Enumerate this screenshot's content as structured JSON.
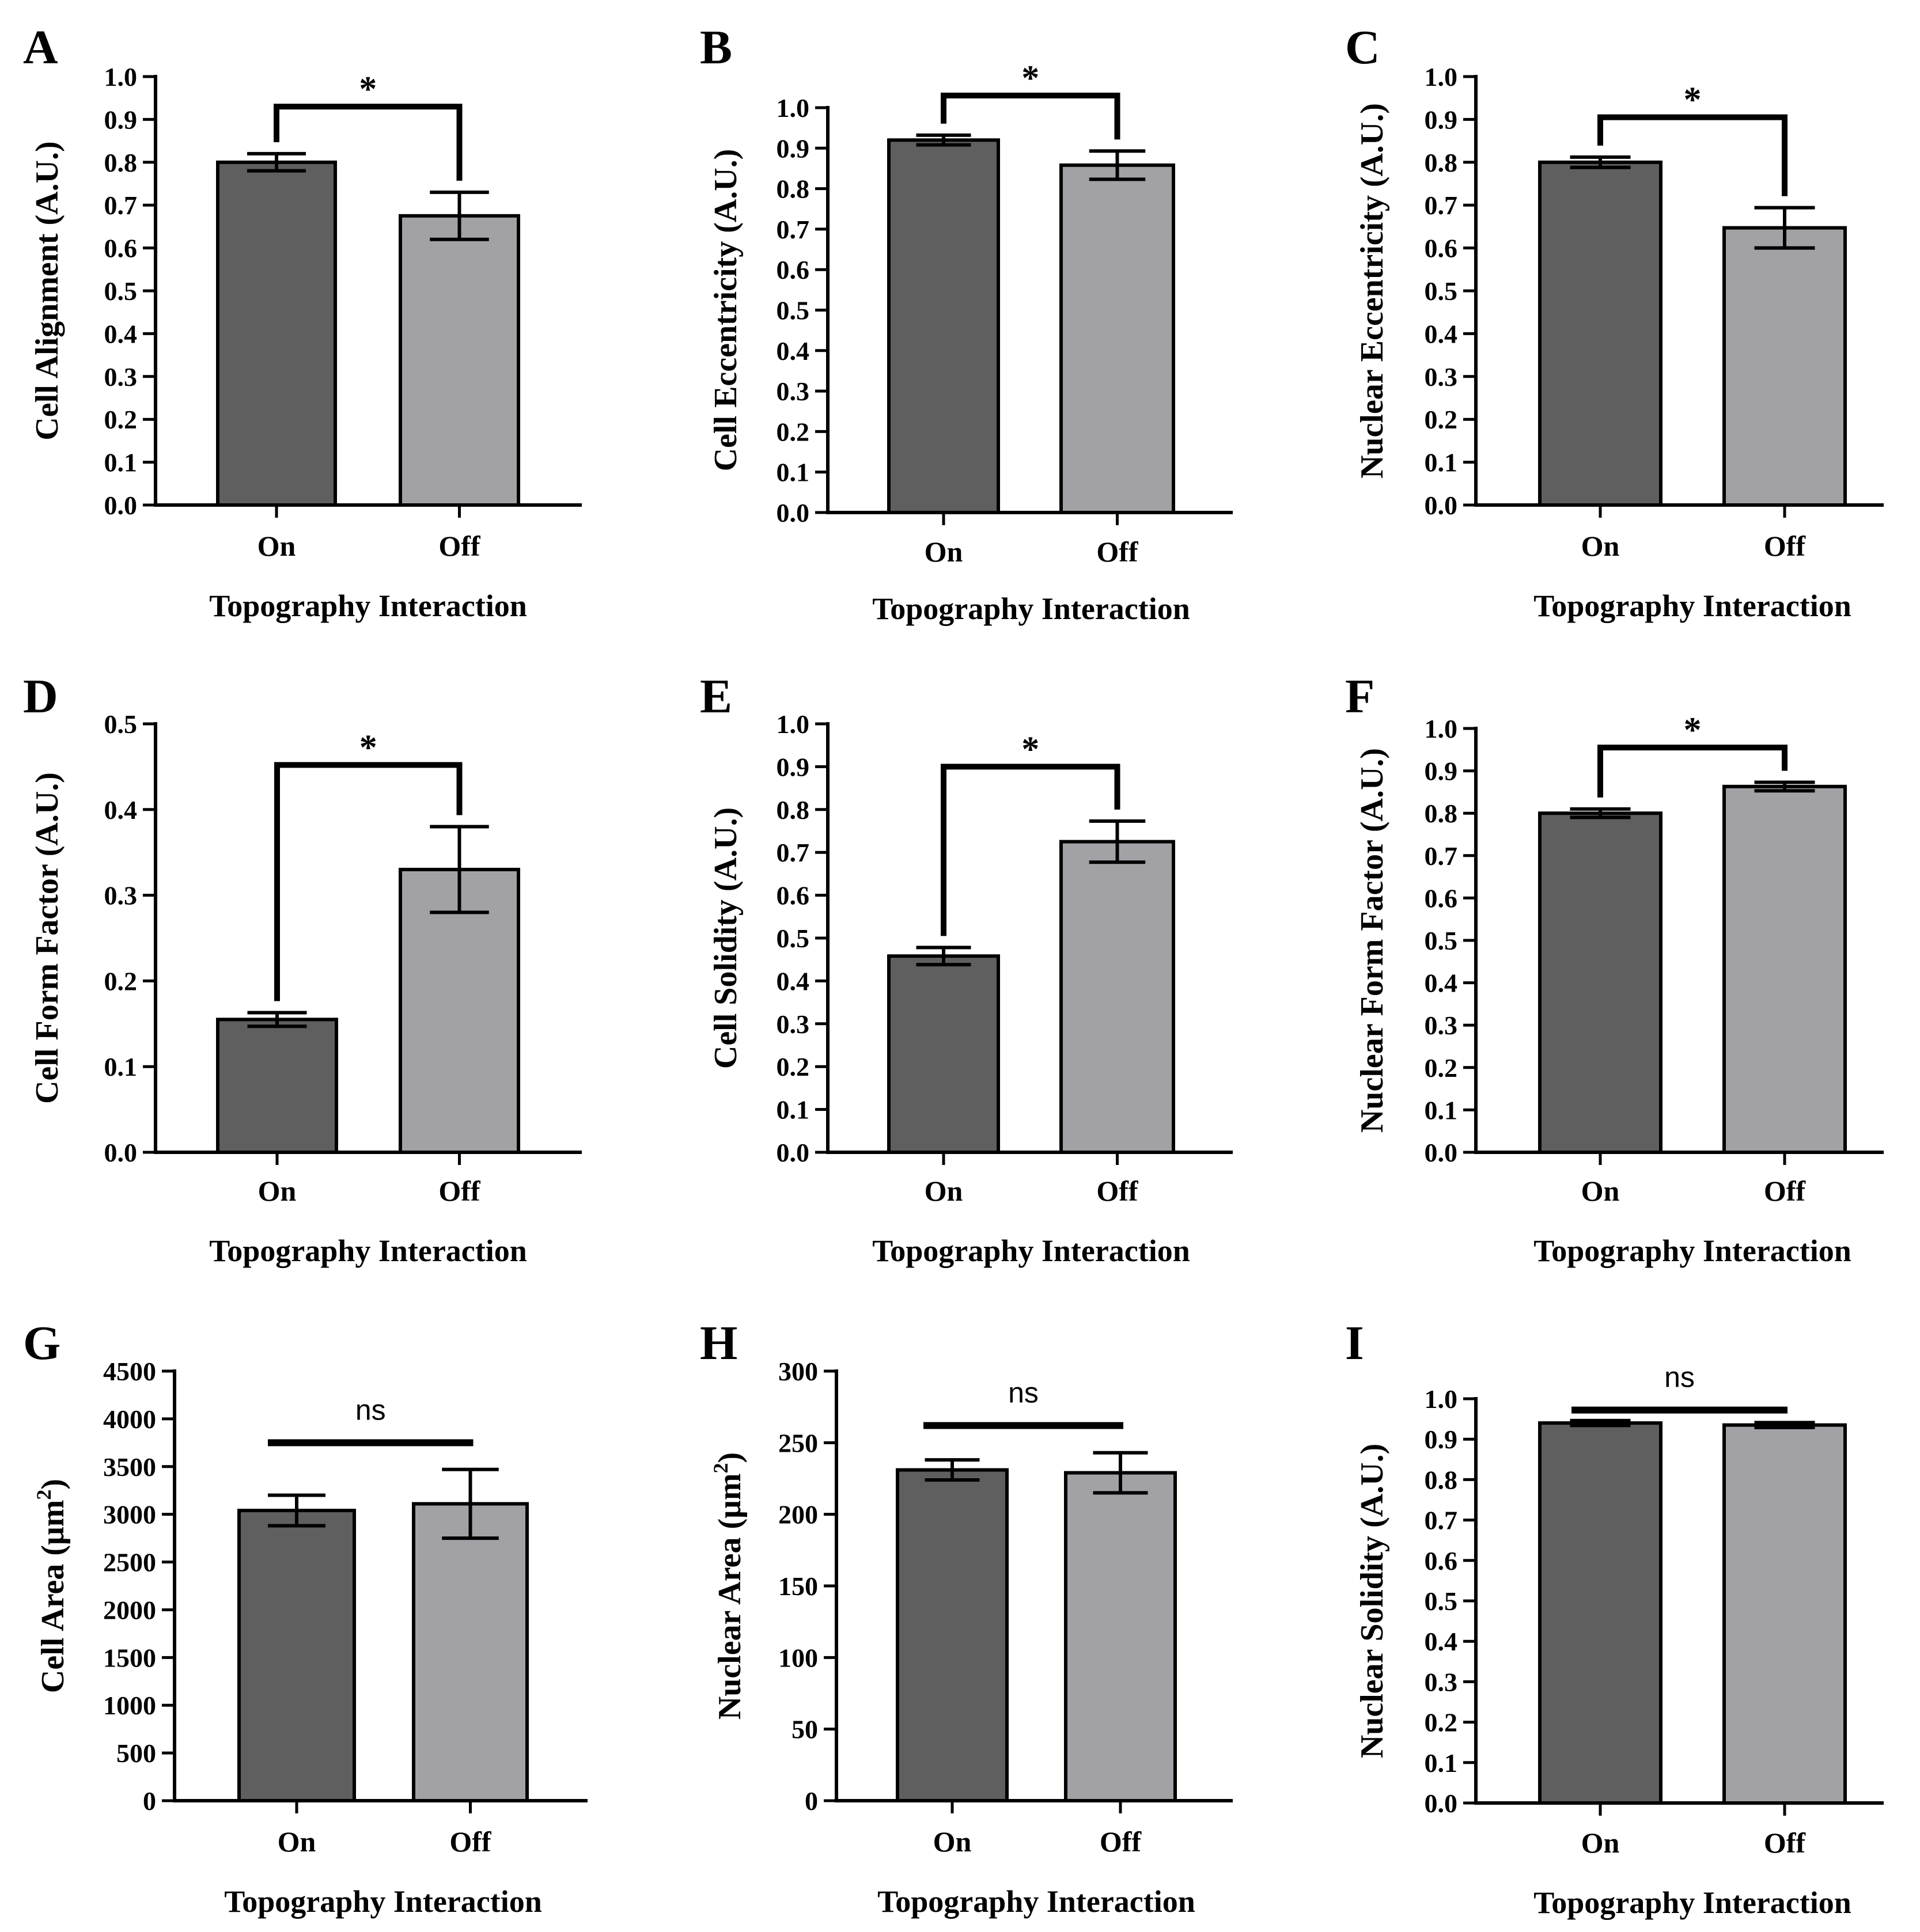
{
  "colors": {
    "on": "#5f5f5f",
    "off": "#a2a2a6",
    "stroke": "#000000"
  },
  "chart_data": [
    {
      "type": "bar",
      "panel": "A",
      "categories": [
        "On",
        "Off"
      ],
      "values": [
        0.8,
        0.675
      ],
      "errors": [
        0.02,
        0.055
      ],
      "ylabel": "Cell Alignment (A.U.)",
      "xlabel": "Topography Interaction",
      "ylim": [
        0,
        1.0
      ],
      "yticks": [
        "0.0",
        "0.1",
        "0.2",
        "0.3",
        "0.4",
        "0.5",
        "0.6",
        "0.7",
        "0.8",
        "0.9",
        "1.0"
      ],
      "significance": "*",
      "bracket_level": 0.93
    },
    {
      "type": "bar",
      "panel": "B",
      "categories": [
        "On",
        "Off"
      ],
      "values": [
        0.92,
        0.858
      ],
      "errors": [
        0.012,
        0.035
      ],
      "ylabel": "Cell Eccentricity (A.U.)",
      "xlabel": "Topography Interaction",
      "ylim": [
        0,
        1.0
      ],
      "yticks": [
        "0.0",
        "0.1",
        "0.2",
        "0.3",
        "0.4",
        "0.5",
        "0.6",
        "0.7",
        "0.8",
        "0.9",
        "1.0"
      ],
      "significance": "*",
      "bracket_level": 1.03
    },
    {
      "type": "bar",
      "panel": "C",
      "categories": [
        "On",
        "Off"
      ],
      "values": [
        0.8,
        0.647
      ],
      "errors": [
        0.012,
        0.047
      ],
      "ylabel": "Nuclear Eccentricity (A.U.)",
      "xlabel": "Topography Interaction",
      "ylim": [
        0,
        1.0
      ],
      "yticks": [
        "0.0",
        "0.1",
        "0.2",
        "0.3",
        "0.4",
        "0.5",
        "0.6",
        "0.7",
        "0.8",
        "0.9",
        "1.0"
      ],
      "significance": "*",
      "bracket_level": 0.905
    },
    {
      "type": "bar",
      "panel": "D",
      "categories": [
        "On",
        "Off"
      ],
      "values": [
        0.155,
        0.33
      ],
      "errors": [
        0.008,
        0.05
      ],
      "ylabel": "Cell Form Factor (A.U.)",
      "xlabel": "Topography Interaction",
      "ylim": [
        0,
        0.5
      ],
      "yticks": [
        "0.0",
        "0.1",
        "0.2",
        "0.3",
        "0.4",
        "0.5"
      ],
      "significance": "*",
      "bracket_level": 0.452
    },
    {
      "type": "bar",
      "panel": "E",
      "categories": [
        "On",
        "Off"
      ],
      "values": [
        0.458,
        0.725
      ],
      "errors": [
        0.02,
        0.048
      ],
      "ylabel": "Cell Solidity (A.U.)",
      "xlabel": "Topography Interaction",
      "ylim": [
        0,
        1.0
      ],
      "yticks": [
        "0.0",
        "0.1",
        "0.2",
        "0.3",
        "0.4",
        "0.5",
        "0.6",
        "0.7",
        "0.8",
        "0.9",
        "1.0"
      ],
      "significance": "*",
      "bracket_level": 0.9
    },
    {
      "type": "bar",
      "panel": "F",
      "categories": [
        "On",
        "Off"
      ],
      "values": [
        0.8,
        0.863
      ],
      "errors": [
        0.01,
        0.01
      ],
      "ylabel": "Nuclear Form Factor (A.U.)",
      "xlabel": "Topography Interaction",
      "ylim": [
        0,
        1.0
      ],
      "yticks": [
        "0.0",
        "0.1",
        "0.2",
        "0.3",
        "0.4",
        "0.5",
        "0.6",
        "0.7",
        "0.8",
        "0.9",
        "1.0"
      ],
      "significance": "*",
      "bracket_level": 0.955
    },
    {
      "type": "bar",
      "panel": "G",
      "categories": [
        "On",
        "Off"
      ],
      "values": [
        3040,
        3110
      ],
      "errors": [
        160,
        360
      ],
      "ylabel_main": "Cell Area (μm",
      "ylabel_sup": "2",
      "ylabel_end": ")",
      "xlabel": "Topography Interaction",
      "ylim": [
        0,
        4500
      ],
      "yticks": [
        "0",
        "500",
        "1000",
        "1500",
        "2000",
        "2500",
        "3000",
        "3500",
        "4000",
        "4500"
      ],
      "significance": "ns",
      "bracket_level": 3750
    },
    {
      "type": "bar",
      "panel": "H",
      "categories": [
        "On",
        "Off"
      ],
      "values": [
        231,
        229
      ],
      "errors": [
        7,
        14
      ],
      "ylabel_main": "Nuclear Area (μm",
      "ylabel_sup": "2",
      "ylabel_end": ")",
      "xlabel": "Topography Interaction",
      "ylim": [
        0,
        300
      ],
      "yticks": [
        "0",
        "50",
        "100",
        "150",
        "200",
        "250",
        "300"
      ],
      "significance": "ns",
      "bracket_level": 262
    },
    {
      "type": "bar",
      "panel": "I",
      "categories": [
        "On",
        "Off"
      ],
      "values": [
        0.94,
        0.935
      ],
      "errors": [
        0.006,
        0.006
      ],
      "ylabel": "Nuclear Solidity (A.U.)",
      "xlabel": "Topography Interaction",
      "ylim": [
        0,
        1.0
      ],
      "yticks": [
        "0.0",
        "0.1",
        "0.2",
        "0.3",
        "0.4",
        "0.5",
        "0.6",
        "0.7",
        "0.8",
        "0.9",
        "1.0"
      ],
      "significance": "ns",
      "bracket_level": 0.972
    }
  ]
}
